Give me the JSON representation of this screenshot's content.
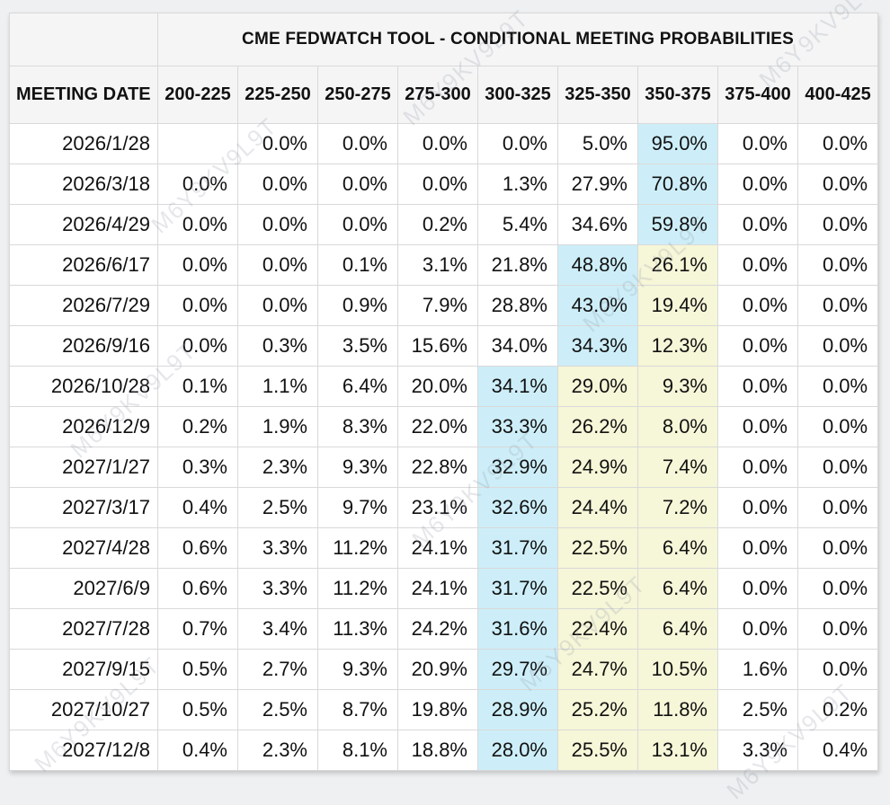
{
  "title": "CME FEDWATCH TOOL - CONDITIONAL MEETING PROBABILITIES",
  "watermark_text": "M6Y9KV9L9T",
  "colors": {
    "highlight_blue": "#cdeef8",
    "highlight_yellow": "#f6f6d8",
    "header_background": "#f5f5f6",
    "grid_line": "#d9d9d9",
    "page_background": "#eef0f1"
  },
  "chart_data": {
    "type": "table",
    "title": "CME FEDWATCH TOOL - CONDITIONAL MEETING PROBABILITIES",
    "columns": [
      "MEETING DATE",
      "200-225",
      "225-250",
      "250-275",
      "275-300",
      "300-325",
      "325-350",
      "350-375",
      "375-400",
      "400-425"
    ],
    "rows": [
      {
        "date": "2026/1/28",
        "values": [
          "",
          "0.0%",
          "0.0%",
          "0.0%",
          "0.0%",
          "5.0%",
          "95.0%",
          "0.0%",
          "0.0%"
        ],
        "highlights": [
          "",
          "",
          "",
          "",
          "",
          "",
          "blue",
          "",
          ""
        ]
      },
      {
        "date": "2026/3/18",
        "values": [
          "0.0%",
          "0.0%",
          "0.0%",
          "0.0%",
          "1.3%",
          "27.9%",
          "70.8%",
          "0.0%",
          "0.0%"
        ],
        "highlights": [
          "",
          "",
          "",
          "",
          "",
          "",
          "blue",
          "",
          ""
        ]
      },
      {
        "date": "2026/4/29",
        "values": [
          "0.0%",
          "0.0%",
          "0.0%",
          "0.2%",
          "5.4%",
          "34.6%",
          "59.8%",
          "0.0%",
          "0.0%"
        ],
        "highlights": [
          "",
          "",
          "",
          "",
          "",
          "",
          "blue",
          "",
          ""
        ]
      },
      {
        "date": "2026/6/17",
        "values": [
          "0.0%",
          "0.0%",
          "0.1%",
          "3.1%",
          "21.8%",
          "48.8%",
          "26.1%",
          "0.0%",
          "0.0%"
        ],
        "highlights": [
          "",
          "",
          "",
          "",
          "",
          "blue",
          "yellow",
          "",
          ""
        ]
      },
      {
        "date": "2026/7/29",
        "values": [
          "0.0%",
          "0.0%",
          "0.9%",
          "7.9%",
          "28.8%",
          "43.0%",
          "19.4%",
          "0.0%",
          "0.0%"
        ],
        "highlights": [
          "",
          "",
          "",
          "",
          "",
          "blue",
          "yellow",
          "",
          ""
        ]
      },
      {
        "date": "2026/9/16",
        "values": [
          "0.0%",
          "0.3%",
          "3.5%",
          "15.6%",
          "34.0%",
          "34.3%",
          "12.3%",
          "0.0%",
          "0.0%"
        ],
        "highlights": [
          "",
          "",
          "",
          "",
          "",
          "blue",
          "yellow",
          "",
          ""
        ]
      },
      {
        "date": "2026/10/28",
        "values": [
          "0.1%",
          "1.1%",
          "6.4%",
          "20.0%",
          "34.1%",
          "29.0%",
          "9.3%",
          "0.0%",
          "0.0%"
        ],
        "highlights": [
          "",
          "",
          "",
          "",
          "blue",
          "yellow",
          "yellow",
          "",
          ""
        ]
      },
      {
        "date": "2026/12/9",
        "values": [
          "0.2%",
          "1.9%",
          "8.3%",
          "22.0%",
          "33.3%",
          "26.2%",
          "8.0%",
          "0.0%",
          "0.0%"
        ],
        "highlights": [
          "",
          "",
          "",
          "",
          "blue",
          "yellow",
          "yellow",
          "",
          ""
        ]
      },
      {
        "date": "2027/1/27",
        "values": [
          "0.3%",
          "2.3%",
          "9.3%",
          "22.8%",
          "32.9%",
          "24.9%",
          "7.4%",
          "0.0%",
          "0.0%"
        ],
        "highlights": [
          "",
          "",
          "",
          "",
          "blue",
          "yellow",
          "yellow",
          "",
          ""
        ]
      },
      {
        "date": "2027/3/17",
        "values": [
          "0.4%",
          "2.5%",
          "9.7%",
          "23.1%",
          "32.6%",
          "24.4%",
          "7.2%",
          "0.0%",
          "0.0%"
        ],
        "highlights": [
          "",
          "",
          "",
          "",
          "blue",
          "yellow",
          "yellow",
          "",
          ""
        ]
      },
      {
        "date": "2027/4/28",
        "values": [
          "0.6%",
          "3.3%",
          "11.2%",
          "24.1%",
          "31.7%",
          "22.5%",
          "6.4%",
          "0.0%",
          "0.0%"
        ],
        "highlights": [
          "",
          "",
          "",
          "",
          "blue",
          "yellow",
          "yellow",
          "",
          ""
        ]
      },
      {
        "date": "2027/6/9",
        "values": [
          "0.6%",
          "3.3%",
          "11.2%",
          "24.1%",
          "31.7%",
          "22.5%",
          "6.4%",
          "0.0%",
          "0.0%"
        ],
        "highlights": [
          "",
          "",
          "",
          "",
          "blue",
          "yellow",
          "yellow",
          "",
          ""
        ]
      },
      {
        "date": "2027/7/28",
        "values": [
          "0.7%",
          "3.4%",
          "11.3%",
          "24.2%",
          "31.6%",
          "22.4%",
          "6.4%",
          "0.0%",
          "0.0%"
        ],
        "highlights": [
          "",
          "",
          "",
          "",
          "blue",
          "yellow",
          "yellow",
          "",
          ""
        ]
      },
      {
        "date": "2027/9/15",
        "values": [
          "0.5%",
          "2.7%",
          "9.3%",
          "20.9%",
          "29.7%",
          "24.7%",
          "10.5%",
          "1.6%",
          "0.0%"
        ],
        "highlights": [
          "",
          "",
          "",
          "",
          "blue",
          "yellow",
          "yellow",
          "",
          ""
        ]
      },
      {
        "date": "2027/10/27",
        "values": [
          "0.5%",
          "2.5%",
          "8.7%",
          "19.8%",
          "28.9%",
          "25.2%",
          "11.8%",
          "2.5%",
          "0.2%"
        ],
        "highlights": [
          "",
          "",
          "",
          "",
          "blue",
          "yellow",
          "yellow",
          "",
          ""
        ]
      },
      {
        "date": "2027/12/8",
        "values": [
          "0.4%",
          "2.3%",
          "8.1%",
          "18.8%",
          "28.0%",
          "25.5%",
          "13.1%",
          "3.3%",
          "0.4%"
        ],
        "highlights": [
          "",
          "",
          "",
          "",
          "blue",
          "yellow",
          "yellow",
          "",
          ""
        ]
      }
    ]
  }
}
